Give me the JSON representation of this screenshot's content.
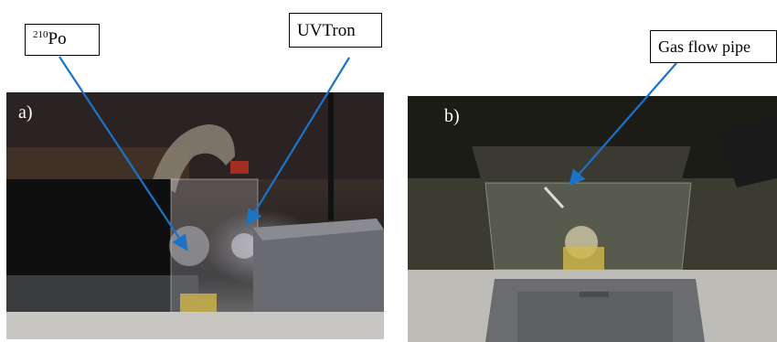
{
  "panel_a": {
    "tag": "a)",
    "label_po": {
      "superscript": "210",
      "text": "Po"
    },
    "label_uvtron": "UVTron"
  },
  "panel_b": {
    "tag": "b)",
    "label_gas": "Gas flow pipe"
  },
  "colors": {
    "arrow": "#1a73c8",
    "callout_border": "#000000",
    "callout_bg": "#ffffff"
  }
}
